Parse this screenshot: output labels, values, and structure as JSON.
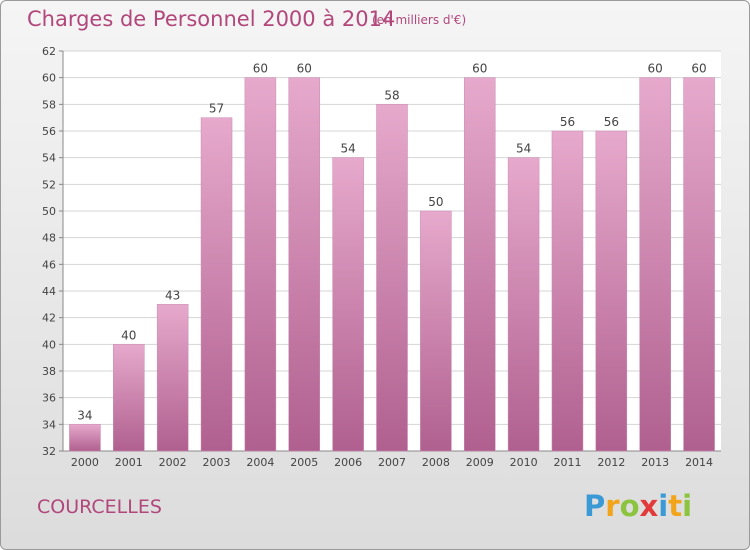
{
  "title": "Charges de Personnel 2000 à 2014",
  "subtitle": "(en milliers d'€)",
  "commune": "COURCELLES",
  "logo": {
    "text": "Proxiti",
    "letters": [
      {
        "ch": "P",
        "color": "#3b9ad6"
      },
      {
        "ch": "r",
        "color": "#f2a51b"
      },
      {
        "ch": "o",
        "color": "#8cc43f"
      },
      {
        "ch": "x",
        "color": "#e23a3a"
      },
      {
        "ch": "i",
        "color": "#3b9ad6"
      },
      {
        "ch": "t",
        "color": "#f2a51b"
      },
      {
        "ch": "i",
        "color": "#8cc43f"
      }
    ]
  },
  "colors": {
    "bar_light": "#e6a9cc",
    "bar_dark": "#b0608f",
    "text": "#b1477b"
  },
  "chart_data": {
    "type": "bar",
    "categories": [
      "2000",
      "2001",
      "2002",
      "2003",
      "2004",
      "2005",
      "2006",
      "2007",
      "2008",
      "2009",
      "2010",
      "2011",
      "2012",
      "2013",
      "2014"
    ],
    "values": [
      34,
      40,
      43,
      57,
      60,
      60,
      54,
      58,
      50,
      60,
      54,
      56,
      56,
      60,
      60
    ],
    "ylim": [
      32,
      62
    ],
    "yticks": [
      32,
      34,
      36,
      38,
      40,
      42,
      44,
      46,
      48,
      50,
      52,
      54,
      56,
      58,
      60,
      62
    ],
    "grid": true
  }
}
